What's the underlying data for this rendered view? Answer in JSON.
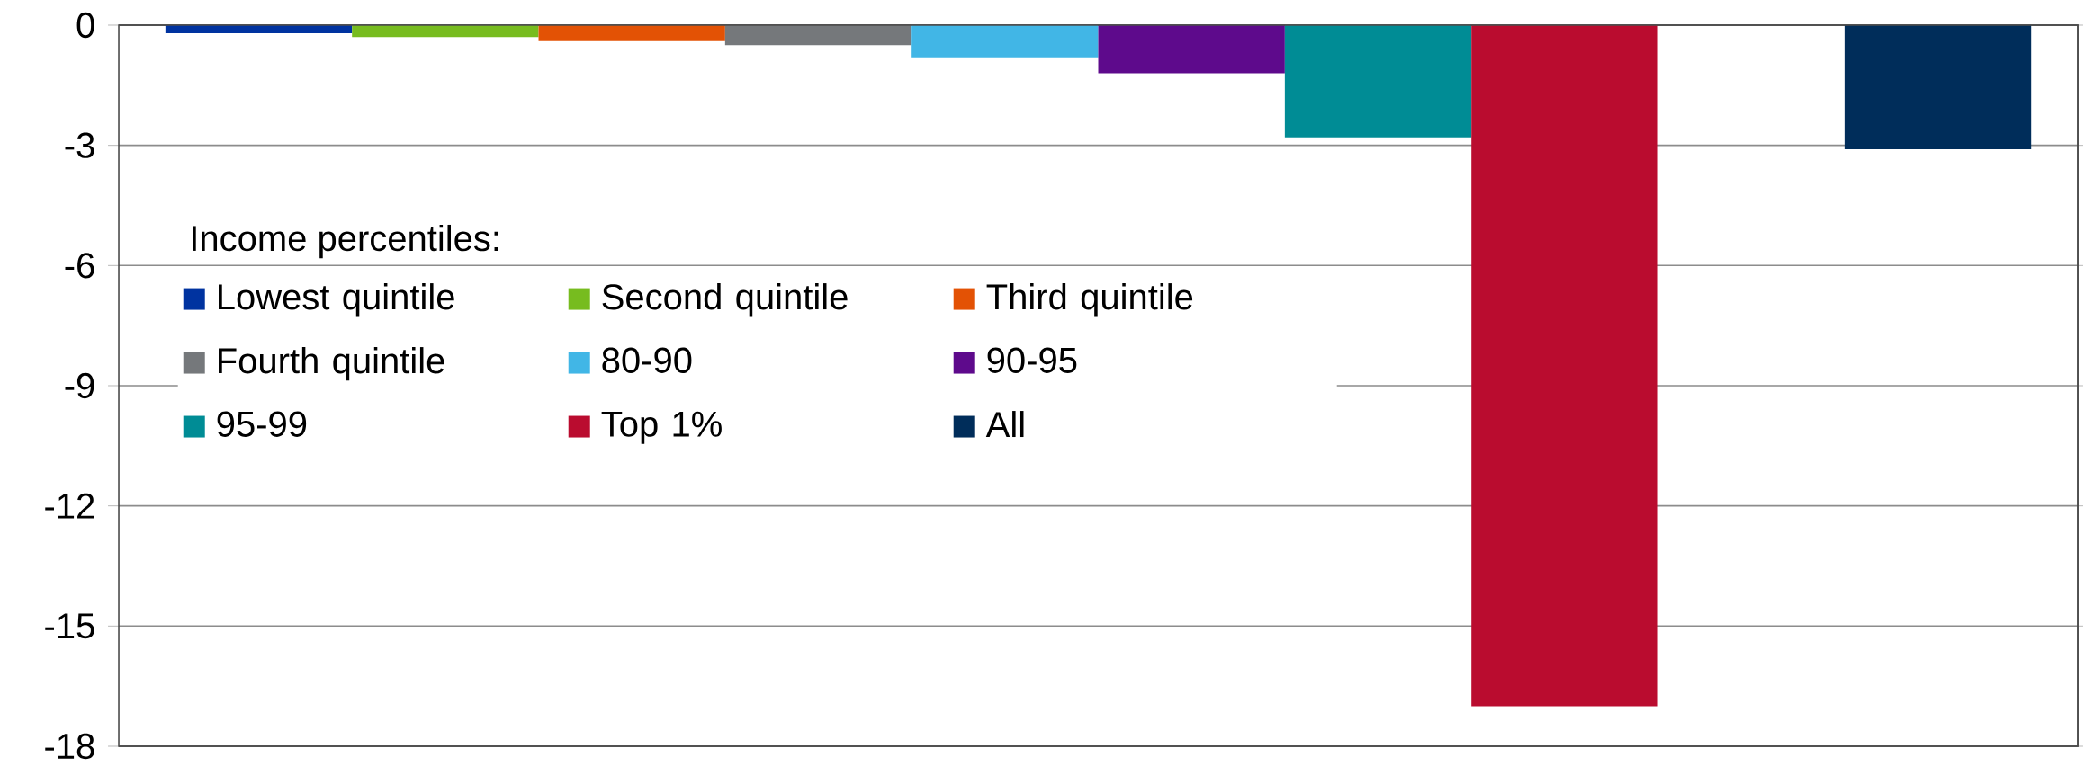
{
  "chart_data": {
    "type": "bar",
    "legend_title": "Income percentiles:",
    "categories": [
      null,
      null,
      null,
      null,
      null,
      null,
      null,
      null,
      null,
      null
    ],
    "series": [
      {
        "name": "Lowest quintile",
        "color": "#0033a0",
        "values": [
          -0.2,
          null,
          null,
          null,
          null,
          null,
          null,
          null,
          null,
          null
        ]
      },
      {
        "name": "Second quintile",
        "color": "#77bc1f",
        "values": [
          null,
          -0.3,
          null,
          null,
          null,
          null,
          null,
          null,
          null,
          null
        ]
      },
      {
        "name": "Third quintile",
        "color": "#e35205",
        "values": [
          null,
          null,
          -0.4,
          null,
          null,
          null,
          null,
          null,
          null,
          null
        ]
      },
      {
        "name": "Fourth quintile",
        "color": "#75787b",
        "values": [
          null,
          null,
          null,
          -0.5,
          null,
          null,
          null,
          null,
          null,
          null
        ]
      },
      {
        "name": "80-90",
        "color": "#41b6e6",
        "values": [
          null,
          null,
          null,
          null,
          -0.8,
          null,
          null,
          null,
          null,
          null
        ]
      },
      {
        "name": "90-95",
        "color": "#5e0a8c",
        "values": [
          null,
          null,
          null,
          null,
          null,
          -1.2,
          null,
          null,
          null,
          null
        ]
      },
      {
        "name": "95-99",
        "color": "#008c95",
        "values": [
          null,
          null,
          null,
          null,
          null,
          null,
          -2.8,
          null,
          null,
          null
        ]
      },
      {
        "name": "Top 1%",
        "color": "#ba0c2f",
        "values": [
          null,
          null,
          null,
          null,
          null,
          null,
          null,
          -17.0,
          null,
          null
        ]
      },
      {
        "name": "All",
        "color": "#002d5a",
        "values": [
          null,
          null,
          null,
          null,
          null,
          null,
          null,
          null,
          null,
          -3.1
        ]
      }
    ],
    "ylim": [
      -18,
      0
    ],
    "yticks": [
      0,
      -3,
      -6,
      -9,
      -12,
      -15,
      -18
    ],
    "grid": "y",
    "legend": "left"
  }
}
